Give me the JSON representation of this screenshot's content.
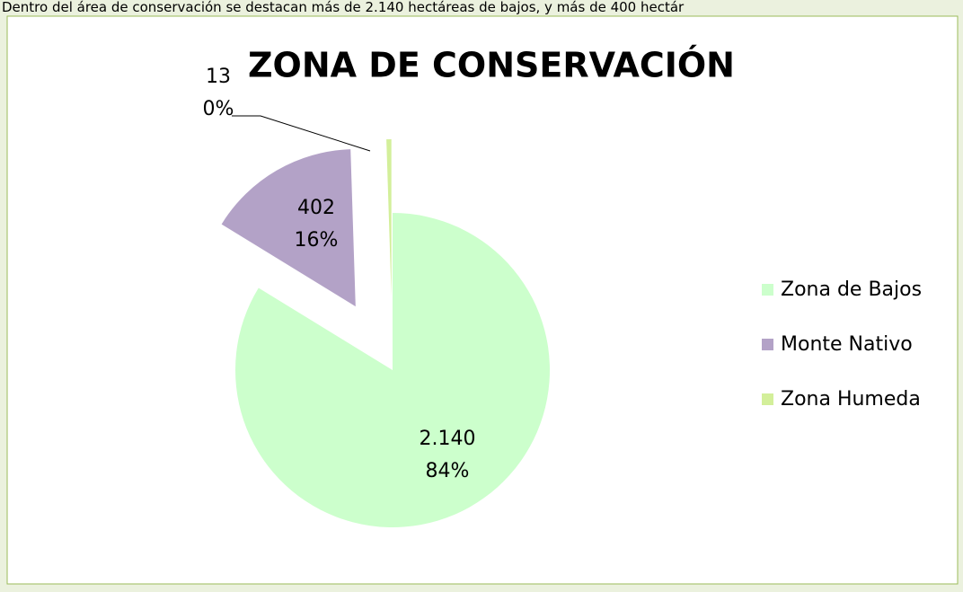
{
  "caption": "Dentro del área de conservación se destacan más de 2.140 hectáreas de bajos, y más de 400 hectár",
  "chart_data": {
    "type": "pie",
    "title": "ZONA DE CONSERVACIÓN",
    "categories": [
      "Zona de Bajos",
      "Monte Nativo",
      "Zona Humeda"
    ],
    "values": [
      2140,
      402,
      13
    ],
    "value_labels": [
      "2.140",
      "402",
      "13"
    ],
    "percents": [
      84,
      16,
      0
    ],
    "percent_labels": [
      "84%",
      "16%",
      "0%"
    ],
    "colors": [
      "#ccffcc",
      "#b3a2c7",
      "#d3ef9a"
    ],
    "legend": "right"
  }
}
